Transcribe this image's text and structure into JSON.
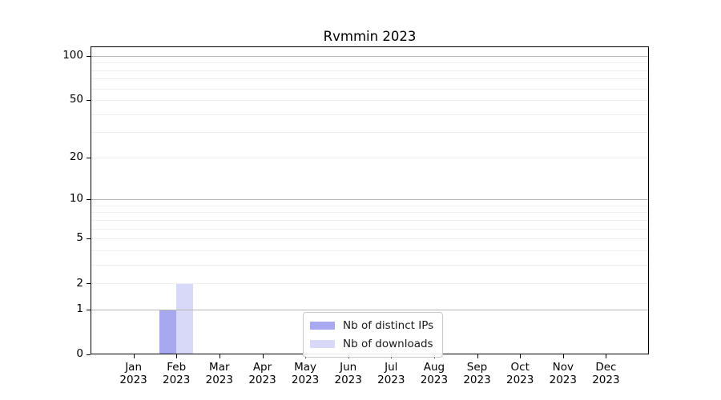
{
  "chart_data": {
    "type": "bar",
    "title": "Rvmmin 2023",
    "categories": [
      "Jan",
      "Feb",
      "Mar",
      "Apr",
      "May",
      "Jun",
      "Jul",
      "Aug",
      "Sep",
      "Oct",
      "Nov",
      "Dec"
    ],
    "year_label": "2023",
    "series": [
      {
        "name": "Nb of distinct IPs",
        "color": "#a8a8f0",
        "values": [
          0,
          1,
          0,
          0,
          0,
          0,
          0,
          0,
          0,
          0,
          0,
          0
        ]
      },
      {
        "name": "Nb of downloads",
        "color": "#d8d8f8",
        "values": [
          0,
          2,
          0,
          0,
          0,
          0,
          0,
          0,
          0,
          0,
          0,
          0
        ]
      }
    ],
    "xlabel": "",
    "ylabel": "",
    "yscale": "log1p",
    "ylim": [
      0,
      116
    ],
    "yticks": [
      0,
      1,
      2,
      5,
      10,
      20,
      50,
      100
    ],
    "major_gridlines": [
      1,
      10,
      100
    ],
    "minor_gridlines": [
      2,
      3,
      4,
      5,
      6,
      7,
      8,
      9,
      20,
      30,
      40,
      50,
      60,
      70,
      80,
      90
    ],
    "grid": true,
    "legend_position": "inside lower center",
    "colors": {
      "major_grid": "#b6b6b6",
      "minor_grid": "#efefef",
      "spine": "#000000",
      "text": "#000000"
    }
  }
}
